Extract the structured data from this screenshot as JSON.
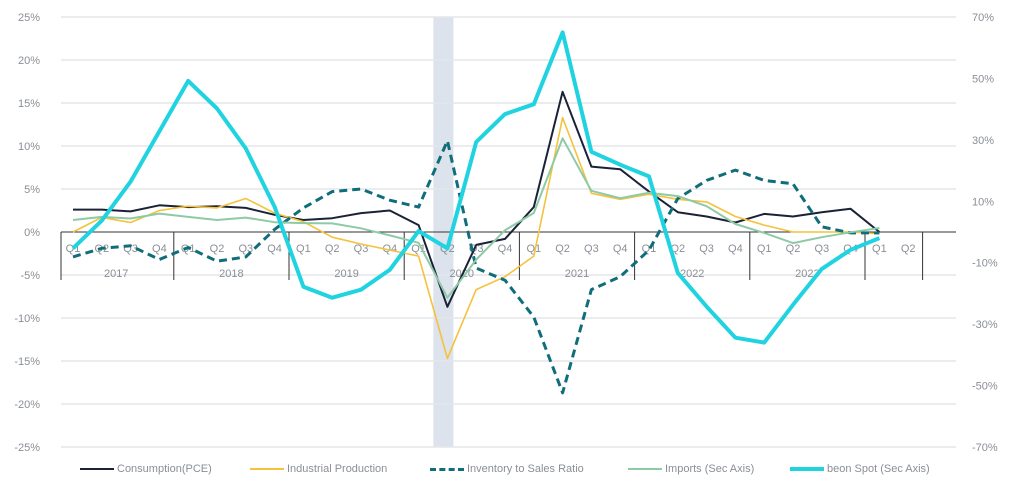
{
  "chart_data": {
    "type": "line",
    "title": "",
    "xlabel": "",
    "ylabel": "",
    "ylim": [
      -25,
      25
    ],
    "y_ticks": [
      "25%",
      "20%",
      "15%",
      "10%",
      "5%",
      "0%",
      "-5%",
      "-10%",
      "-15%",
      "-20%",
      "-25%"
    ],
    "y2lim": [
      -70,
      70
    ],
    "y2_ticks": [
      "70%",
      "50%",
      "30%",
      "10%",
      "-10%",
      "-30%",
      "-50%",
      "-70%"
    ],
    "grid": true,
    "legend_position": "bottom",
    "quarter_labels": [
      "Q1",
      "Q2",
      "Q3",
      "Q4",
      "Q1",
      "Q2",
      "Q3",
      "Q4",
      "Q1",
      "Q2",
      "Q3",
      "Q4",
      "Q1",
      "Q2",
      "Q3",
      "Q4",
      "Q1",
      "Q2",
      "Q3",
      "Q4",
      "Q1",
      "Q2",
      "Q3",
      "Q4",
      "Q1",
      "Q2",
      "Q3",
      "Q4",
      "Q1",
      "Q2"
    ],
    "years": [
      {
        "label": "2017",
        "quarters": 4
      },
      {
        "label": "2018",
        "quarters": 4
      },
      {
        "label": "2019",
        "quarters": 4
      },
      {
        "label": "2020",
        "quarters": 4
      },
      {
        "label": "2021",
        "quarters": 4
      },
      {
        "label": "2022",
        "quarters": 4
      },
      {
        "label": "2023",
        "quarters": 4
      },
      {
        "label": "",
        "quarters": 2
      }
    ],
    "shaded_period": {
      "quarter_index": 13,
      "color": "#dde3ec"
    },
    "series": [
      {
        "name": "Consumption(PCE)",
        "axis": "left",
        "color": "#1b2238",
        "dash": false,
        "width": 2,
        "values": [
          2.6,
          2.6,
          2.4,
          3.1,
          2.9,
          3.0,
          2.8,
          2.0,
          1.4,
          1.6,
          2.2,
          2.5,
          0.8,
          -8.7,
          -1.5,
          -0.8,
          2.9,
          16.3,
          7.6,
          7.3,
          4.7,
          2.3,
          1.8,
          1.1,
          2.1,
          1.8,
          2.3,
          2.7,
          0.0
        ]
      },
      {
        "name": "Industrial Production",
        "axis": "left",
        "color": "#f4c23c",
        "dash": false,
        "width": 1.6,
        "values": [
          0.0,
          1.7,
          1.1,
          2.5,
          3.0,
          2.8,
          3.9,
          2.2,
          1.2,
          -0.6,
          -1.4,
          -2.1,
          -2.8,
          -14.7,
          -6.7,
          -5.2,
          -2.8,
          13.3,
          4.5,
          3.8,
          4.4,
          3.8,
          3.5,
          1.8,
          0.8,
          0.0,
          0.0,
          0.0,
          -0.2
        ]
      },
      {
        "name": "Inventory to Sales Ratio",
        "axis": "left",
        "color": "#0f6e7a",
        "dash": true,
        "width": 3,
        "values": [
          -2.9,
          -1.9,
          -1.6,
          -3.2,
          -1.8,
          -3.4,
          -2.9,
          0.3,
          2.8,
          4.7,
          5.0,
          3.7,
          2.9,
          10.6,
          -4.2,
          -5.6,
          -9.9,
          -18.7,
          -6.7,
          -5.2,
          -2.1,
          3.9,
          6.0,
          7.2,
          6.0,
          5.6,
          0.6,
          -0.1,
          -0.1
        ]
      },
      {
        "name": "Imports (Sec Axis)",
        "axis": "right",
        "color": "#8ecaa6",
        "dash": false,
        "width": 2,
        "values": [
          3.9,
          4.9,
          4.4,
          6.0,
          4.9,
          3.9,
          4.7,
          3.2,
          2.9,
          2.8,
          1.2,
          -1.1,
          -3.5,
          -21.4,
          -9.0,
          0.6,
          6.2,
          30.5,
          13.4,
          11.0,
          12.8,
          11.7,
          8.4,
          2.6,
          -0.3,
          -3.6,
          -1.7,
          -0.1,
          1.3
        ]
      },
      {
        "name": "beon Spot (Sec Axis)",
        "axis": "right",
        "color": "#1fd3e0",
        "dash": false,
        "width": 4,
        "values": [
          -5.3,
          3.7,
          16.4,
          32.8,
          49.2,
          40.2,
          27.2,
          8.2,
          -17.8,
          -21.4,
          -18.8,
          -12.3,
          0.3,
          -5.3,
          29.3,
          38.4,
          41.6,
          65.0,
          26.1,
          21.9,
          18.1,
          -13.3,
          -24.3,
          -34.4,
          -36.0,
          -23.7,
          -12.0,
          -5.8,
          -2.0
        ]
      }
    ]
  }
}
